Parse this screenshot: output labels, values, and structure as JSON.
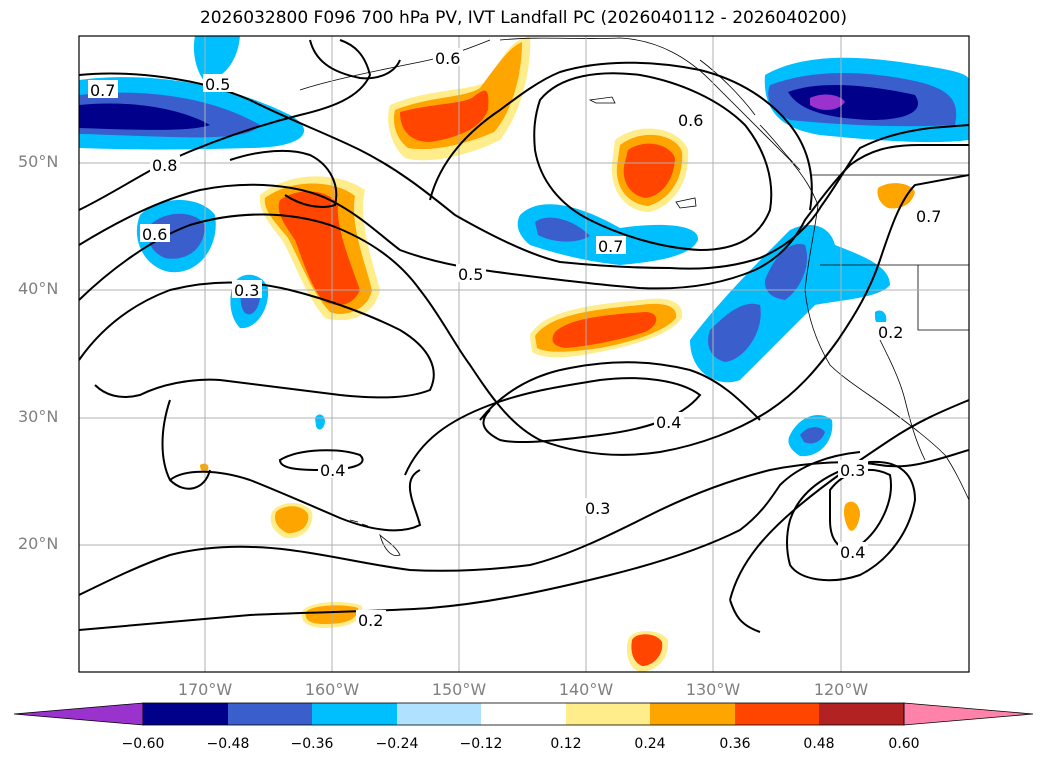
{
  "title": "2026032800 F096 700 hPa PV, IVT Landfall PC (2026040112 - 2026040200)",
  "lat_labels": [
    "50°N",
    "40°N",
    "30°N",
    "20°N"
  ],
  "lon_labels": [
    "170°W",
    "160°W",
    "150°W",
    "140°W",
    "130°W",
    "120°W"
  ],
  "contour_labels": [
    "0.7",
    "0.5",
    "0.6",
    "0.8",
    "0.6",
    "0.3",
    "0.5",
    "0.7",
    "0.6",
    "0.4",
    "0.4",
    "0.3",
    "0.3",
    "0.4",
    "0.2",
    "0.2",
    "0.7"
  ],
  "colorbar": {
    "ticks": [
      "−0.60",
      "−0.48",
      "−0.36",
      "−0.24",
      "−0.12",
      "0.12",
      "0.24",
      "0.36",
      "0.48",
      "0.60"
    ],
    "colors": [
      "#9a32cd",
      "#00008b",
      "#3a5fcd",
      "#00bfff",
      "#b0e2ff",
      "#ffffff",
      "#ffec8b",
      "#ffa500",
      "#ff4500",
      "#b22222",
      "#ff82ab"
    ]
  },
  "shading_colors": {
    "neg_light": "#b0e2ff",
    "neg_mid": "#00bfff",
    "neg_strong": "#3a5fcd",
    "neg_vstrong": "#00008b",
    "neg_max": "#9a32cd",
    "pos_light": "#ffec8b",
    "pos_mid": "#ffa500",
    "pos_strong": "#ff4500"
  }
}
